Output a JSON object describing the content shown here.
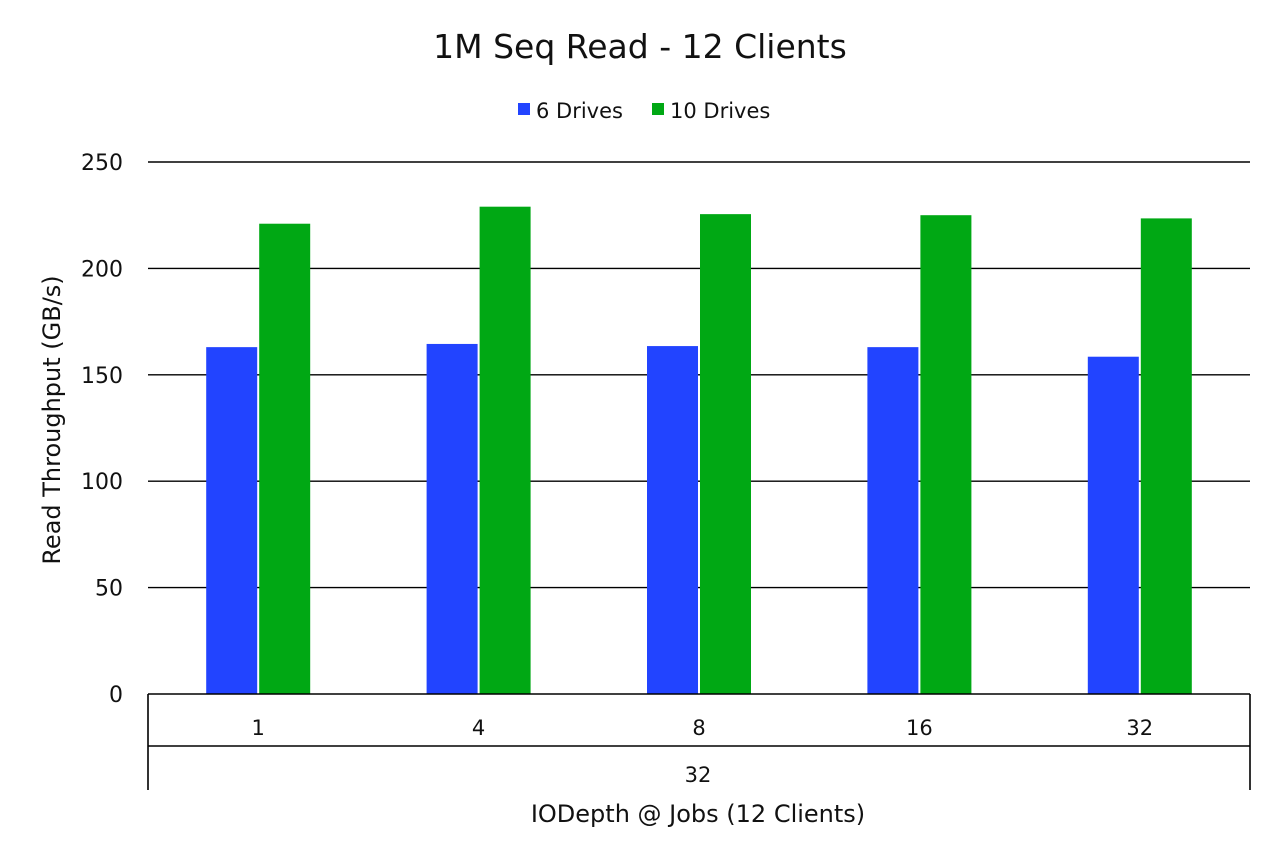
{
  "chart_data": {
    "type": "bar",
    "title": "1M Seq Read - 12 Clients",
    "ylabel": "Read Throughput (GB/s)",
    "xlabel": "IODepth @ Jobs (12 Clients)",
    "group_label": "32",
    "categories": [
      "1",
      "4",
      "8",
      "16",
      "32"
    ],
    "series": [
      {
        "name": "6 Drives",
        "color": "#2244ff",
        "values": [
          163,
          164.5,
          163.5,
          163,
          158.5
        ]
      },
      {
        "name": "10 Drives",
        "color": "#00a814",
        "values": [
          221,
          229,
          225.5,
          225,
          223.5
        ]
      }
    ],
    "ylim": [
      0,
      250
    ],
    "yticks": [
      0,
      50,
      100,
      150,
      200,
      250
    ],
    "grid": true,
    "legend_position": "top-center"
  }
}
